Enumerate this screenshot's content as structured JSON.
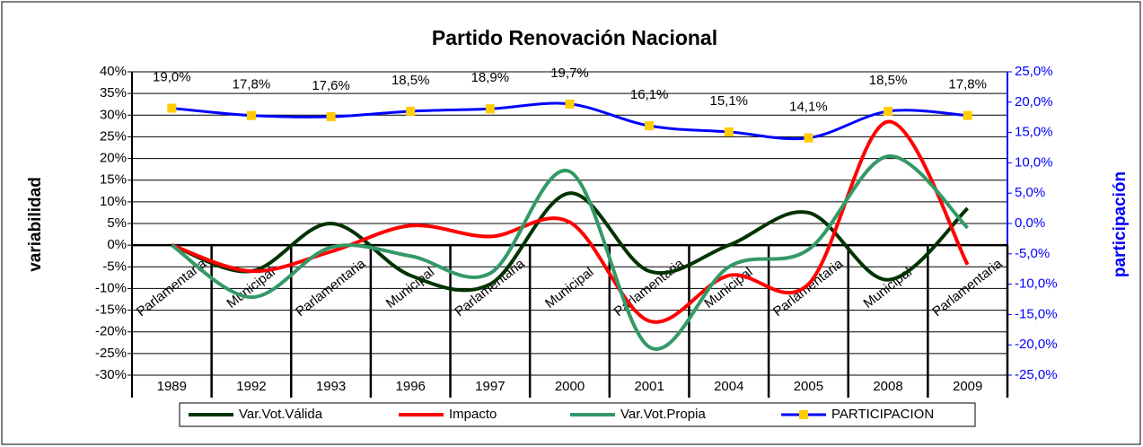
{
  "chart_data": {
    "type": "line",
    "title": "Partido Renovación Nacional",
    "y_label": "variabilidad",
    "y2_label": "participación",
    "categories": [
      "1989",
      "1992",
      "1993",
      "1996",
      "1997",
      "2000",
      "2001",
      "2004",
      "2005",
      "2008",
      "2009"
    ],
    "category_types": [
      "Parlamentaria",
      "Municipal",
      "Parlamentaria",
      "Municipal",
      "Parlamentaria",
      "Municipal",
      "Parlamentaria",
      "Municipal",
      "Parlamentaria",
      "Municipal",
      "Parlamentaria"
    ],
    "series": [
      {
        "name": "Var.Vot.Válida",
        "color": "#003300",
        "values": [
          0,
          -6,
          5,
          -7,
          -9,
          12,
          -6,
          0,
          7.5,
          -8,
          8.5
        ]
      },
      {
        "name": "Impacto",
        "color": "#ff0000",
        "values": [
          0,
          -6,
          -1.5,
          4.5,
          2,
          5.3,
          -17.5,
          -7,
          -9,
          28.5,
          -4.5
        ]
      },
      {
        "name": "Var.Vot.Propia",
        "color": "#339966",
        "values": [
          0,
          -12,
          -0.5,
          -2.5,
          -6.5,
          17,
          -23.5,
          -5,
          -1,
          20.5,
          4
        ]
      },
      {
        "name": "PARTICIPACION",
        "color": "#0000ff",
        "marker_color": "#ffcc00",
        "axis": "y2",
        "values": [
          19.0,
          17.8,
          17.6,
          18.5,
          18.9,
          19.7,
          16.1,
          15.1,
          14.1,
          18.5,
          17.8
        ],
        "value_labels": [
          "19,0%",
          "17,8%",
          "17,6%",
          "18,5%",
          "18,9%",
          "19,7%",
          "16,1%",
          "15,1%",
          "14,1%",
          "18,5%",
          "17,8%"
        ]
      }
    ],
    "ylim": [
      -30,
      40
    ],
    "yticks": [
      {
        "value": -30,
        "label": "-30%"
      },
      {
        "value": -25,
        "label": "-25%"
      },
      {
        "value": -20,
        "label": "-20%"
      },
      {
        "value": -15,
        "label": "-15%"
      },
      {
        "value": -10,
        "label": "-10%"
      },
      {
        "value": -5,
        "label": "-5%"
      },
      {
        "value": 0,
        "label": "0%"
      },
      {
        "value": 5,
        "label": "5%"
      },
      {
        "value": 10,
        "label": "10%"
      },
      {
        "value": 15,
        "label": "15%"
      },
      {
        "value": 20,
        "label": "20%"
      },
      {
        "value": 25,
        "label": "25%"
      },
      {
        "value": 30,
        "label": "30%"
      },
      {
        "value": 35,
        "label": "35%"
      },
      {
        "value": 40,
        "label": "40%"
      }
    ],
    "y2lim": [
      -25,
      25
    ],
    "y2ticks": [
      {
        "value": -25,
        "label": "-25,0%"
      },
      {
        "value": -20,
        "label": "-20,0%"
      },
      {
        "value": -15,
        "label": "-15,0%"
      },
      {
        "value": -10,
        "label": "-10,0%"
      },
      {
        "value": -5,
        "label": "-5,0%"
      },
      {
        "value": 0,
        "label": "0,0%"
      },
      {
        "value": 5,
        "label": "5,0%"
      },
      {
        "value": 10,
        "label": "10,0%"
      },
      {
        "value": 15,
        "label": "15,0%"
      },
      {
        "value": 20,
        "label": "20,0%"
      },
      {
        "value": 25,
        "label": "25,0%"
      }
    ],
    "grid": true,
    "legend": "bottom"
  }
}
